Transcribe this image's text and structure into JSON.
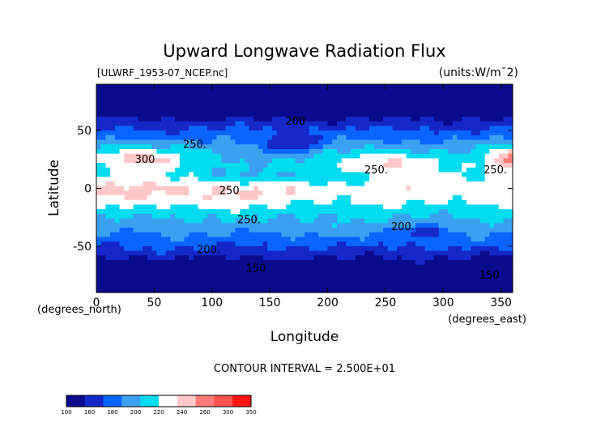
{
  "chart_data": {
    "type": "contour",
    "title": "Upward Longwave Radiation Flux",
    "source_label": "[ULWRF_1953-07_NCEP.nc]",
    "units_label": "(units:W/m^2)",
    "xlabel": "Longitude",
    "ylabel": "Latitude",
    "x_unit_label": "(degrees_east)",
    "y_unit_label": "(degrees_north)",
    "xlim": [
      0,
      360
    ],
    "ylim": [
      -90,
      90
    ],
    "x_ticks": [
      0,
      50,
      100,
      150,
      200,
      250,
      300,
      350
    ],
    "y_ticks": [
      -50,
      0,
      50
    ],
    "contour_interval_text": "CONTOUR INTERVAL = 2.500E+01",
    "contour_labels": [
      {
        "text": "200",
        "lon": 172,
        "lat": 55
      },
      {
        "text": "250.",
        "lon": 85,
        "lat": 35
      },
      {
        "text": "300",
        "lon": 42,
        "lat": 22
      },
      {
        "text": "250.",
        "lon": 242,
        "lat": 13
      },
      {
        "text": "250.",
        "lon": 345,
        "lat": 13
      },
      {
        "text": "250",
        "lon": 115,
        "lat": -5
      },
      {
        "text": "250.",
        "lon": 132,
        "lat": -30
      },
      {
        "text": "200.",
        "lon": 265,
        "lat": -36
      },
      {
        "text": "200.",
        "lon": 97,
        "lat": -56
      },
      {
        "text": "150",
        "lon": 138,
        "lat": -72
      },
      {
        "text": "150",
        "lon": 340,
        "lat": -78
      }
    ],
    "colorbar": {
      "levels": [
        100,
        160,
        180,
        200,
        220,
        240,
        260,
        300,
        350
      ],
      "colors": [
        "#0a0a8c",
        "#1428c8",
        "#0a64ff",
        "#3ca0f0",
        "#00dcf0",
        "#ffffff",
        "#ffc8c8",
        "#ff7a7a",
        "#ff5050",
        "#ff1414"
      ]
    }
  }
}
